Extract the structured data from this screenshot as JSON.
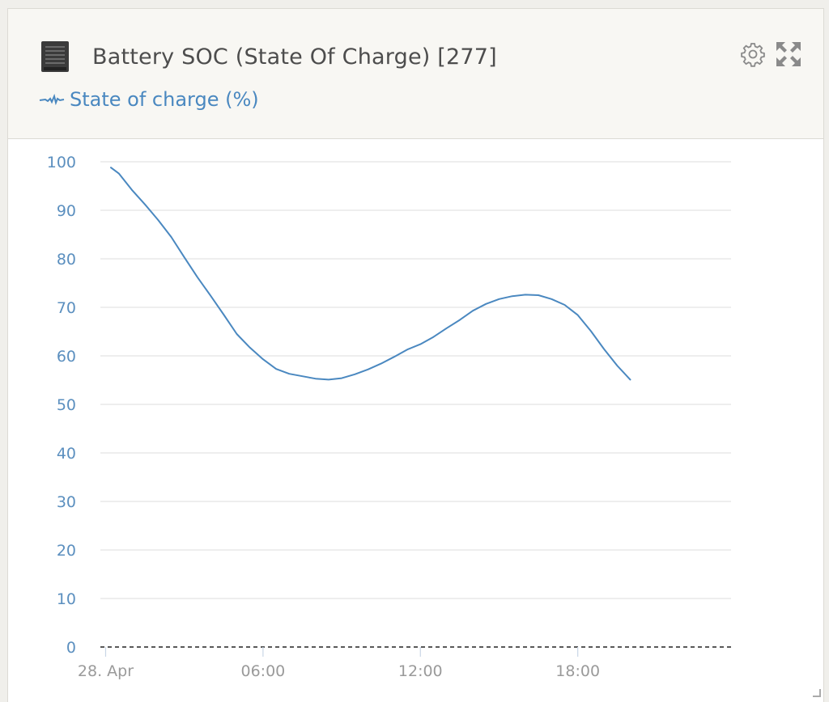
{
  "widget": {
    "title": "Battery SOC (State Of Charge) [277]",
    "icons": {
      "device": "battery-icon",
      "settings": "gear-icon",
      "expand": "expand-icon"
    }
  },
  "legend": {
    "label": "State of charge (%)",
    "icon": "line-sample-icon"
  },
  "colors": {
    "series": "#4a88c0",
    "axis_text": "#5b8fbf",
    "grid": "#e3e3e3",
    "title": "#4d4d4d"
  },
  "chart_data": {
    "type": "line",
    "xlabel": "",
    "ylabel": "",
    "ylim": [
      0,
      100
    ],
    "yticks": [
      0,
      10,
      20,
      30,
      40,
      50,
      60,
      70,
      80,
      90,
      100
    ],
    "xticks": [
      {
        "hour": 0,
        "label": "28. Apr"
      },
      {
        "hour": 6,
        "label": "06:00"
      },
      {
        "hour": 12,
        "label": "12:00"
      },
      {
        "hour": 18,
        "label": "18:00"
      }
    ],
    "xlim_hours": [
      -0.2,
      24
    ],
    "grid": true,
    "series": [
      {
        "name": "State of charge (%)",
        "x_hours": [
          0.2,
          0.5,
          1.0,
          1.5,
          2.0,
          2.5,
          3.0,
          3.5,
          4.0,
          4.5,
          5.0,
          5.5,
          6.0,
          6.5,
          7.0,
          7.5,
          8.0,
          8.5,
          9.0,
          9.5,
          10.0,
          10.5,
          11.0,
          11.5,
          12.0,
          12.5,
          13.0,
          13.5,
          14.0,
          14.5,
          15.0,
          15.5,
          16.0,
          16.5,
          17.0,
          17.5,
          18.0,
          18.5,
          19.0,
          19.5,
          20.0
        ],
        "values": [
          98.8,
          97.6,
          94.2,
          91.2,
          88.0,
          84.5,
          80.3,
          76.2,
          72.4,
          68.5,
          64.5,
          61.7,
          59.3,
          57.3,
          56.3,
          55.8,
          55.3,
          55.1,
          55.4,
          56.2,
          57.2,
          58.4,
          59.8,
          61.3,
          62.4,
          63.9,
          65.7,
          67.4,
          69.3,
          70.7,
          71.7,
          72.3,
          72.6,
          72.5,
          71.7,
          70.5,
          68.4,
          65.1,
          61.4,
          58.0,
          55.1
        ]
      }
    ]
  }
}
